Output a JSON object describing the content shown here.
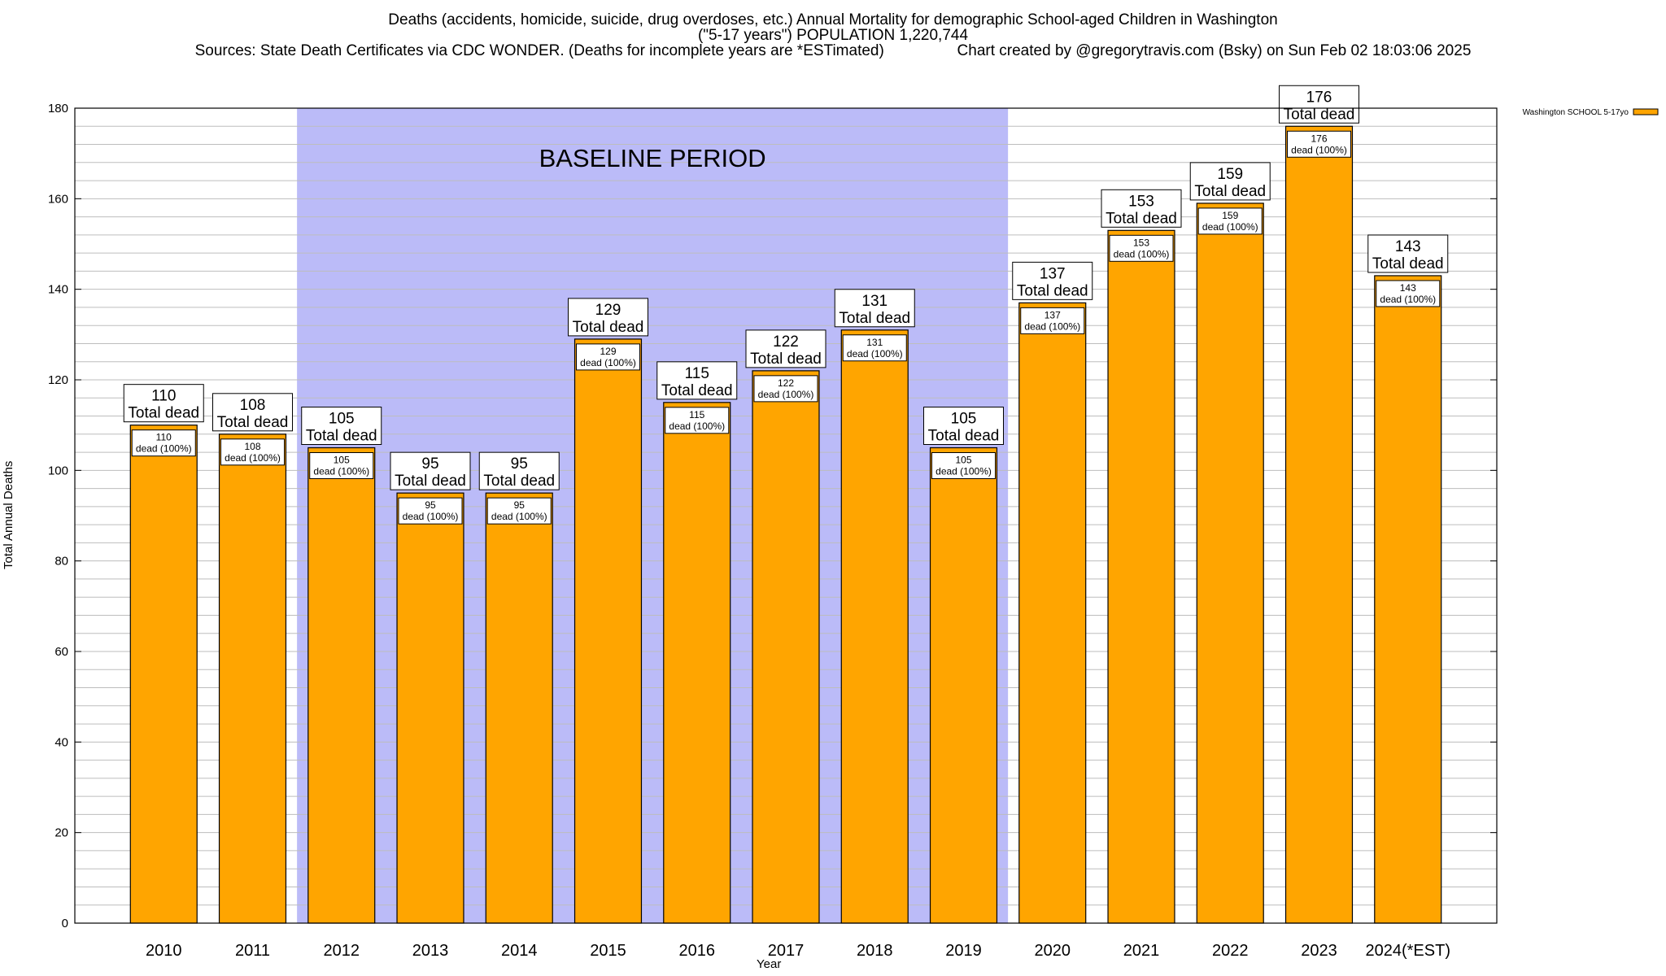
{
  "header": {
    "line1": "Deaths (accidents, homicide, suicide, drug overdoses, etc.) Annual Mortality for demographic School-aged Children in Washington",
    "line2": "(\"5-17 years\") POPULATION 1,220,744",
    "line3": "Sources: State Death Certificates via CDC WONDER. (Deaths for incomplete years are *ESTimated)                 Chart created by @gregorytravis.com (Bsky) on Sun Feb 02 18:03:06 2025"
  },
  "chart_data": {
    "type": "bar",
    "xlabel": "Year",
    "ylabel": "Total Annual Deaths",
    "ylim": [
      0,
      180
    ],
    "yticks": [
      0,
      20,
      40,
      60,
      80,
      100,
      120,
      140,
      160,
      180
    ],
    "grid": true,
    "legend_position": "top-right",
    "categories": [
      "2010",
      "2011",
      "2012",
      "2013",
      "2014",
      "2015",
      "2016",
      "2017",
      "2018",
      "2019",
      "2020",
      "2021",
      "2022",
      "2023",
      "2024(*EST)"
    ],
    "series": [
      {
        "name": "Washington SCHOOL 5-17yo",
        "color": "#ffa500",
        "values": [
          110,
          108,
          105,
          95,
          95,
          129,
          115,
          122,
          131,
          105,
          137,
          153,
          159,
          176,
          143
        ]
      }
    ],
    "total_label": "Total dead",
    "inner_label": "dead (100%)",
    "shaded_region": {
      "label": "BASELINE PERIOD",
      "from_category": "2012",
      "to_category": "2019",
      "color": "#bbbbf8"
    }
  }
}
